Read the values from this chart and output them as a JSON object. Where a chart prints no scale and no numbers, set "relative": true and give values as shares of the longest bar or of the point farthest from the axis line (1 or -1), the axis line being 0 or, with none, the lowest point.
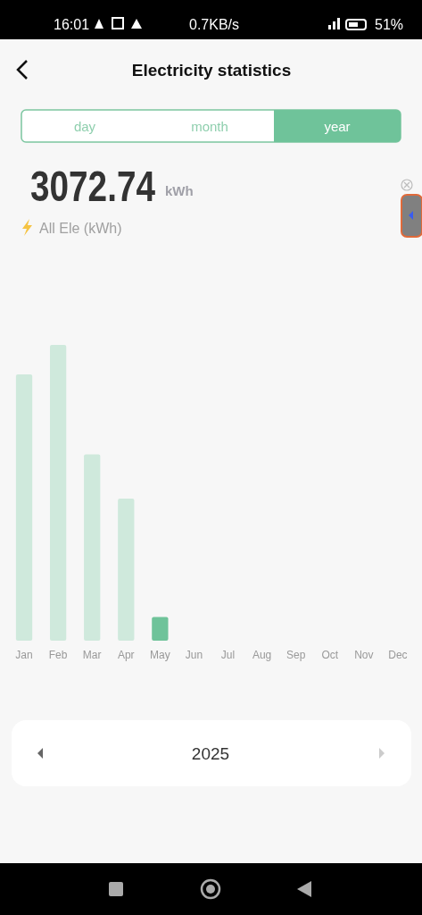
{
  "chart_data": {
    "type": "bar",
    "title": "Electricity statistics",
    "categories": [
      "Jan",
      "Feb",
      "Mar",
      "Apr",
      "May",
      "Jun",
      "Jul",
      "Aug",
      "Sep",
      "Oct",
      "Nov",
      "Dec"
    ],
    "values": [
      0.9,
      1,
      0.63,
      0.48,
      0.08,
      null,
      null,
      null,
      null,
      null,
      null,
      null
    ],
    "colors": [
      "#cfe9dc",
      "#cfe9dc",
      "#cfe9dc",
      "#cfe9dc",
      "#6fc39a",
      null,
      null,
      null,
      null,
      null,
      null,
      null
    ],
    "relative": true,
    "annotations": [
      "16:01",
      "0.7KB/s",
      "51%",
      "day",
      "month",
      "year",
      "3072.74",
      "kWh",
      "All Ele (kWh)",
      "2025"
    ]
  }
}
